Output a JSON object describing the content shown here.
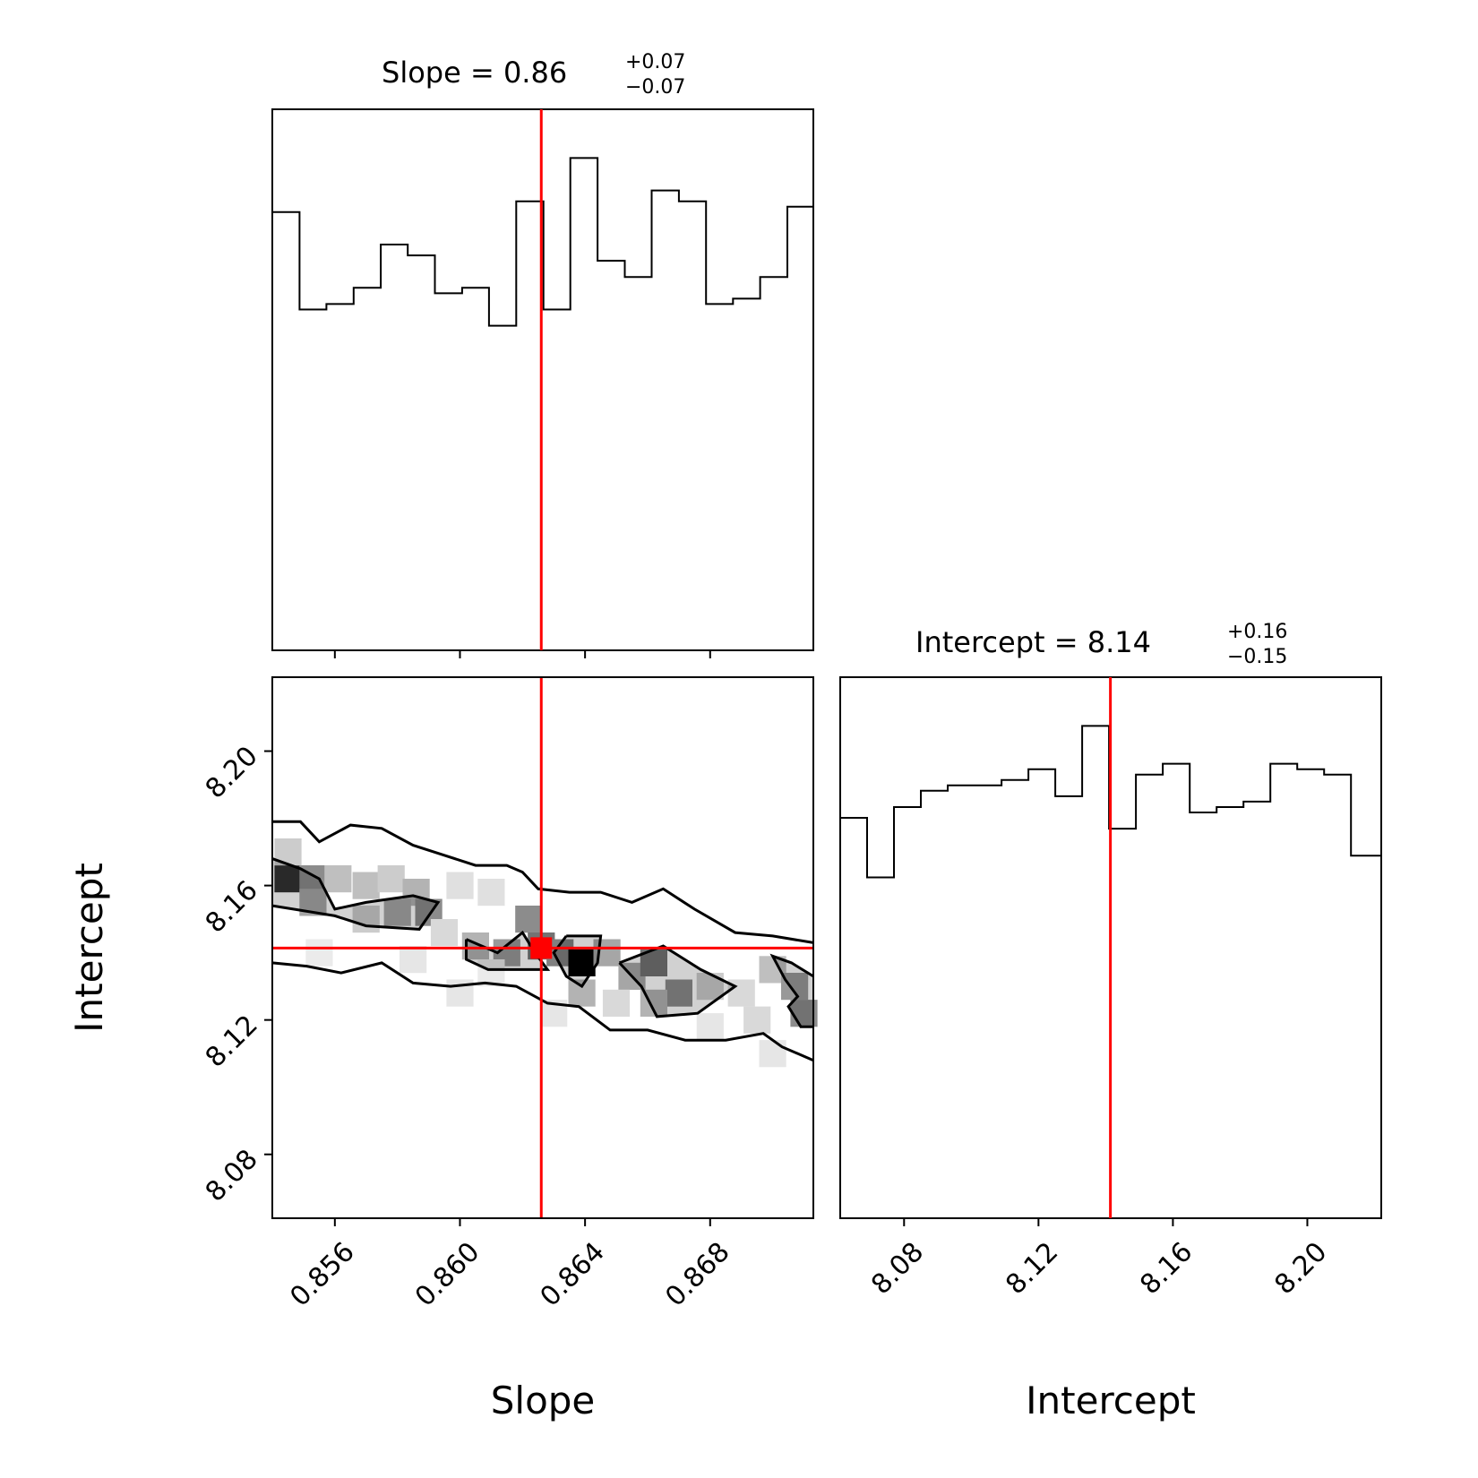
{
  "chart_data": {
    "type": "corner",
    "truth": {
      "slope": 0.8626,
      "intercept": 8.1414
    },
    "colors": {
      "truth": "#ff0000",
      "line": "#000000",
      "background": "#ffffff"
    },
    "slope_hist": {
      "title_prefix": "Slope = 0.86",
      "title_plus": "+0.07",
      "title_minus": "−0.07",
      "xlim": [
        0.854,
        0.8713
      ],
      "ylim": [
        0,
        1
      ],
      "ticks": [
        "0.856",
        "0.860",
        "0.864",
        "0.868"
      ],
      "tick_values": [
        0.856,
        0.86,
        0.864,
        0.868
      ],
      "bin_edges": [
        0.854,
        0.85487,
        0.85573,
        0.8566,
        0.85747,
        0.85833,
        0.8592,
        0.86007,
        0.86093,
        0.8618,
        0.86267,
        0.86353,
        0.8644,
        0.86527,
        0.86613,
        0.867,
        0.86787,
        0.86873,
        0.8696,
        0.87047,
        0.8713
      ],
      "counts": [
        0.81,
        0.63,
        0.64,
        0.67,
        0.75,
        0.73,
        0.66,
        0.67,
        0.6,
        0.83,
        0.63,
        0.91,
        0.72,
        0.69,
        0.85,
        0.83,
        0.64,
        0.65,
        0.69,
        0.82
      ]
    },
    "intercept_hist": {
      "title_prefix": "Intercept = 8.14",
      "title_plus": "+0.16",
      "title_minus": "−0.15",
      "xlim": [
        8.061,
        8.222
      ],
      "ylim": [
        0,
        1
      ],
      "ticks": [
        "8.08",
        "8.12",
        "8.16",
        "8.20"
      ],
      "tick_values": [
        8.08,
        8.12,
        8.16,
        8.2
      ],
      "xlabel": "Intercept",
      "bin_edges": [
        8.061,
        8.069,
        8.077,
        8.085,
        8.093,
        8.101,
        8.109,
        8.117,
        8.125,
        8.133,
        8.141,
        8.149,
        8.157,
        8.165,
        8.173,
        8.181,
        8.189,
        8.197,
        8.205,
        8.213,
        8.222
      ],
      "counts": [
        0.74,
        0.63,
        0.76,
        0.79,
        0.8,
        0.8,
        0.81,
        0.83,
        0.78,
        0.91,
        0.72,
        0.82,
        0.84,
        0.75,
        0.76,
        0.77,
        0.84,
        0.83,
        0.82,
        0.67
      ]
    },
    "joint": {
      "xlabel": "Slope",
      "ylabel": "Intercept",
      "xlim": [
        0.854,
        0.8713
      ],
      "ylim": [
        8.061,
        8.222
      ],
      "xticks": [
        "0.856",
        "0.860",
        "0.864",
        "0.868"
      ],
      "xtick_values": [
        0.856,
        0.86,
        0.864,
        0.868
      ],
      "yticks": [
        "8.08",
        "8.12",
        "8.16",
        "8.20"
      ],
      "ytick_values": [
        8.08,
        8.12,
        8.16,
        8.2
      ],
      "outer_contour": [
        [
          [
            0.854,
            8.179
          ],
          [
            0.8549,
            8.179
          ],
          [
            0.8555,
            8.173
          ],
          [
            0.8565,
            8.178
          ],
          [
            0.8575,
            8.177
          ],
          [
            0.8585,
            8.172
          ],
          [
            0.8595,
            8.169
          ],
          [
            0.8605,
            8.166
          ],
          [
            0.8615,
            8.166
          ],
          [
            0.862,
            8.164
          ],
          [
            0.8625,
            8.159
          ],
          [
            0.8635,
            8.158
          ],
          [
            0.8645,
            8.158
          ],
          [
            0.8655,
            8.155
          ],
          [
            0.8665,
            8.159
          ],
          [
            0.8675,
            8.153
          ],
          [
            0.8688,
            8.146
          ],
          [
            0.87,
            8.145
          ],
          [
            0.8713,
            8.143
          ]
        ],
        [
          [
            0.854,
            8.137
          ],
          [
            0.8551,
            8.136
          ],
          [
            0.8562,
            8.134
          ],
          [
            0.8575,
            8.137
          ],
          [
            0.8585,
            8.131
          ],
          [
            0.8597,
            8.13
          ],
          [
            0.8608,
            8.131
          ],
          [
            0.8618,
            8.13
          ],
          [
            0.8628,
            8.125
          ],
          [
            0.8638,
            8.124
          ],
          [
            0.8648,
            8.117
          ],
          [
            0.866,
            8.117
          ],
          [
            0.8672,
            8.114
          ],
          [
            0.8685,
            8.114
          ],
          [
            0.8697,
            8.116
          ],
          [
            0.8703,
            8.112
          ],
          [
            0.8713,
            8.108
          ]
        ]
      ],
      "inner_contour": [
        [
          [
            0.854,
            8.168
          ],
          [
            0.8549,
            8.165
          ],
          [
            0.8555,
            8.162
          ],
          [
            0.856,
            8.153
          ],
          [
            0.857,
            8.155
          ],
          [
            0.8585,
            8.157
          ],
          [
            0.8593,
            8.155
          ],
          [
            0.8587,
            8.147
          ],
          [
            0.857,
            8.148
          ],
          [
            0.856,
            8.151
          ],
          [
            0.854,
            8.154
          ]
        ],
        [
          [
            0.8602,
            8.144
          ],
          [
            0.8612,
            8.14
          ],
          [
            0.862,
            8.146
          ],
          [
            0.8624,
            8.14
          ],
          [
            0.8628,
            8.135
          ],
          [
            0.8609,
            8.135
          ],
          [
            0.8602,
            8.138
          ],
          [
            0.8602,
            8.144
          ]
        ],
        [
          [
            0.8634,
            8.145
          ],
          [
            0.8645,
            8.145
          ],
          [
            0.8644,
            8.137
          ],
          [
            0.8639,
            8.13
          ],
          [
            0.8634,
            8.133
          ],
          [
            0.863,
            8.14
          ],
          [
            0.8634,
            8.145
          ]
        ],
        [
          [
            0.8651,
            8.137
          ],
          [
            0.8665,
            8.142
          ],
          [
            0.8677,
            8.135
          ],
          [
            0.8688,
            8.13
          ],
          [
            0.8676,
            8.122
          ],
          [
            0.8663,
            8.121
          ],
          [
            0.8658,
            8.13
          ],
          [
            0.8651,
            8.137
          ]
        ],
        [
          [
            0.8713,
            8.133
          ],
          [
            0.8706,
            8.137
          ],
          [
            0.87,
            8.139
          ],
          [
            0.8704,
            8.132
          ],
          [
            0.8708,
            8.127
          ],
          [
            0.8705,
            8.124
          ],
          [
            0.8709,
            8.118
          ],
          [
            0.8713,
            8.118
          ]
        ]
      ],
      "density_cells": [
        [
          0.8545,
          8.162,
          0.8
        ],
        [
          0.8553,
          8.162,
          0.45
        ],
        [
          0.8561,
          8.162,
          0.25
        ],
        [
          0.8545,
          8.17,
          0.2
        ],
        [
          0.8553,
          8.155,
          0.35
        ],
        [
          0.857,
          8.16,
          0.25
        ],
        [
          0.8578,
          8.162,
          0.2
        ],
        [
          0.8586,
          8.158,
          0.3
        ],
        [
          0.859,
          8.152,
          0.45
        ],
        [
          0.858,
          8.152,
          0.35
        ],
        [
          0.857,
          8.15,
          0.2
        ],
        [
          0.86,
          8.16,
          0.12
        ],
        [
          0.861,
          8.158,
          0.12
        ],
        [
          0.8605,
          8.142,
          0.3
        ],
        [
          0.8615,
          8.14,
          0.4
        ],
        [
          0.8622,
          8.15,
          0.45
        ],
        [
          0.8626,
          8.142,
          0.55
        ],
        [
          0.8632,
          8.14,
          0.5
        ],
        [
          0.8639,
          8.137,
          1.0
        ],
        [
          0.8647,
          8.14,
          0.35
        ],
        [
          0.8639,
          8.128,
          0.3
        ],
        [
          0.8655,
          8.133,
          0.35
        ],
        [
          0.8662,
          8.137,
          0.55
        ],
        [
          0.867,
          8.128,
          0.45
        ],
        [
          0.8662,
          8.125,
          0.3
        ],
        [
          0.868,
          8.13,
          0.2
        ],
        [
          0.869,
          8.128,
          0.15
        ],
        [
          0.87,
          8.135,
          0.25
        ],
        [
          0.8707,
          8.13,
          0.4
        ],
        [
          0.871,
          8.122,
          0.45
        ],
        [
          0.86,
          8.128,
          0.1
        ],
        [
          0.863,
          8.122,
          0.1
        ],
        [
          0.868,
          8.118,
          0.1
        ],
        [
          0.87,
          8.11,
          0.1
        ],
        [
          0.8555,
          8.14,
          0.08
        ],
        [
          0.8585,
          8.138,
          0.1
        ],
        [
          0.861,
          8.134,
          0.08
        ],
        [
          0.865,
          8.125,
          0.15
        ],
        [
          0.8695,
          8.12,
          0.15
        ],
        [
          0.8595,
          8.146,
          0.15
        ]
      ]
    }
  }
}
